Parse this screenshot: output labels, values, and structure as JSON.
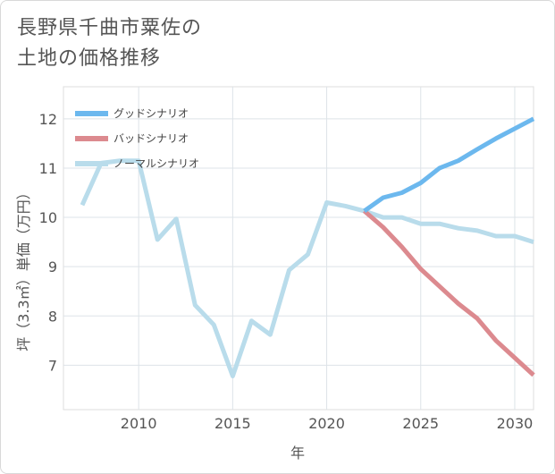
{
  "title_lines": [
    "長野県千曲市粟佐の",
    "土地の価格推移"
  ],
  "chart_data": {
    "type": "line",
    "title": "長野県千曲市粟佐の土地の価格推移",
    "xlabel": "年",
    "ylabel": "坪（3.3㎡）単価（万円）",
    "xlim": [
      2006,
      2031
    ],
    "ylim": [
      6.1,
      12.65
    ],
    "x_ticks": [
      2010,
      2015,
      2020,
      2025,
      2030
    ],
    "y_ticks": [
      7,
      8,
      9,
      10,
      11,
      12
    ],
    "grid": true,
    "legend_position": "top-left",
    "series": [
      {
        "name": "グッドシナリオ",
        "color": "#6cb8ee",
        "x": [
          2022,
          2023,
          2024,
          2025,
          2026,
          2027,
          2028,
          2029,
          2030,
          2031
        ],
        "values": [
          10.13,
          10.4,
          10.5,
          10.7,
          11.0,
          11.15,
          11.38,
          11.6,
          11.8,
          12.0
        ]
      },
      {
        "name": "バッドシナリオ",
        "color": "#dc8a8f",
        "x": [
          2022,
          2023,
          2024,
          2025,
          2026,
          2027,
          2028,
          2029,
          2030,
          2031
        ],
        "values": [
          10.13,
          9.8,
          9.4,
          8.95,
          8.6,
          8.25,
          7.95,
          7.5,
          7.15,
          6.8
        ]
      },
      {
        "name": "ノーマルシナリオ",
        "color": "#b9dceb",
        "x": [
          2007,
          2008,
          2009,
          2010,
          2011,
          2012,
          2013,
          2014,
          2015,
          2016,
          2017,
          2018,
          2019,
          2020,
          2021,
          2022,
          2023,
          2024,
          2025,
          2026,
          2027,
          2028,
          2029,
          2030,
          2031
        ],
        "values": [
          10.25,
          11.1,
          11.15,
          11.15,
          9.55,
          9.97,
          8.22,
          7.82,
          6.78,
          7.9,
          7.62,
          8.93,
          9.25,
          10.3,
          10.23,
          10.13,
          10.0,
          10.0,
          9.87,
          9.87,
          9.78,
          9.73,
          9.62,
          9.62,
          9.5
        ]
      }
    ]
  }
}
